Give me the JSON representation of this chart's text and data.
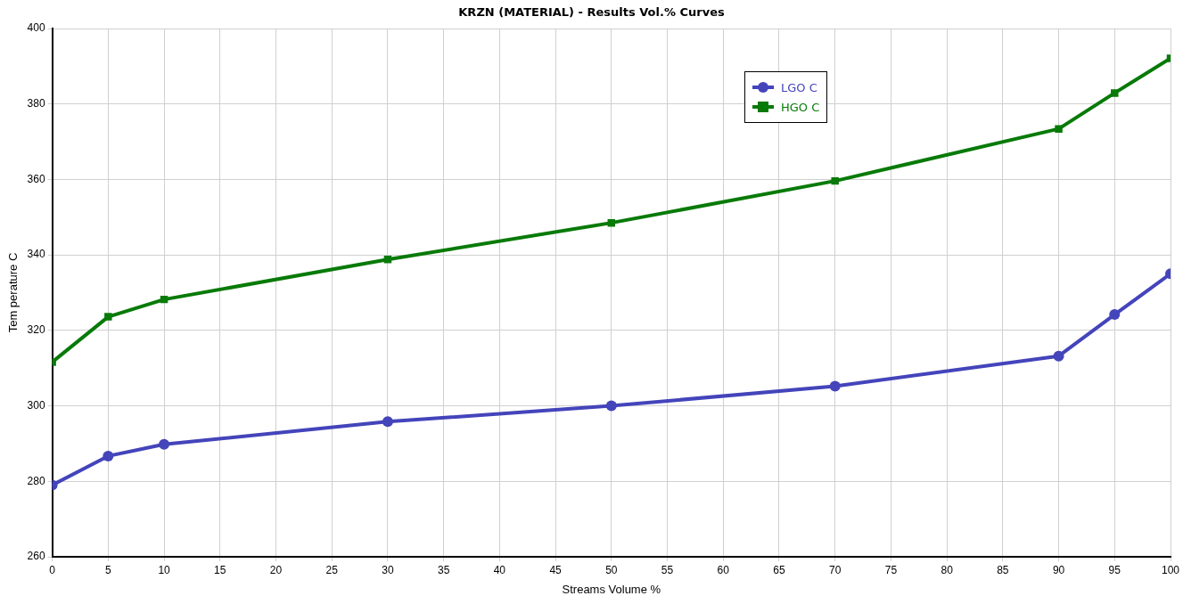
{
  "chart_data": {
    "type": "line",
    "title": "KRZN (MATERIAL) - Results Vol.% Curves",
    "xlabel": "Streams Volume %",
    "ylabel": "Tem perature C",
    "x": [
      0,
      5,
      10,
      30,
      50,
      70,
      90,
      95,
      100
    ],
    "series": [
      {
        "name": "LGO C",
        "color": "#4444bb",
        "marker": "circle",
        "values": [
          279,
          286.7,
          289.8,
          295.8,
          300,
          305.2,
          313.2,
          324.2,
          335
        ]
      },
      {
        "name": "HGO C",
        "color": "#087a08",
        "marker": "square",
        "values": [
          311.6,
          323.6,
          328.2,
          338.8,
          348.5,
          359.6,
          373.4,
          382.9,
          392.1
        ]
      }
    ],
    "xlim": [
      0,
      100
    ],
    "xticks": [
      0,
      5,
      10,
      15,
      20,
      25,
      30,
      35,
      40,
      45,
      50,
      55,
      60,
      65,
      70,
      75,
      80,
      85,
      90,
      95,
      100
    ],
    "ylim": [
      260,
      400
    ],
    "yticks": [
      260,
      280,
      300,
      320,
      340,
      360,
      380,
      400
    ],
    "grid": true,
    "legend": "top",
    "line_style": "solid"
  }
}
